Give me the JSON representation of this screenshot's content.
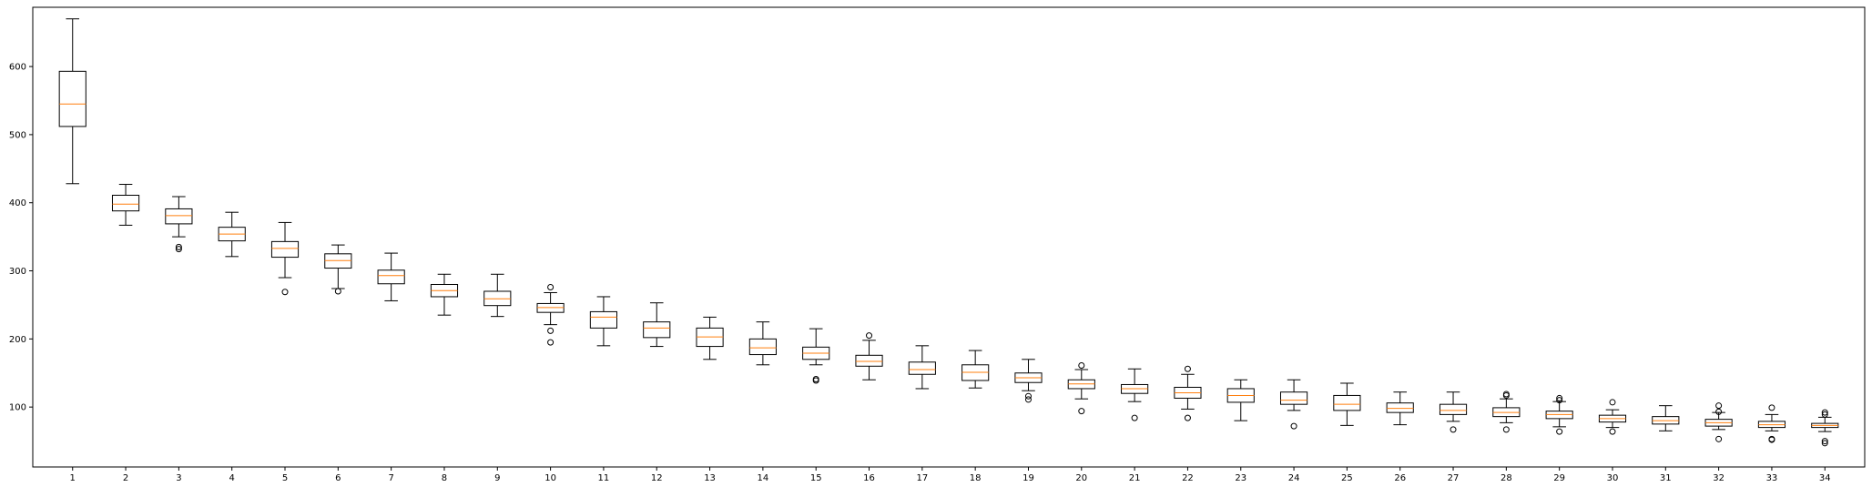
{
  "chart_data": {
    "type": "boxplot",
    "title": "",
    "xlabel": "",
    "ylabel": "",
    "ylim": [
      12,
      687
    ],
    "yticks": [
      100,
      200,
      300,
      400,
      500,
      600
    ],
    "categories": [
      "1",
      "2",
      "3",
      "4",
      "5",
      "6",
      "7",
      "8",
      "9",
      "10",
      "11",
      "12",
      "13",
      "14",
      "15",
      "16",
      "17",
      "18",
      "19",
      "20",
      "21",
      "22",
      "23",
      "24",
      "25",
      "26",
      "27",
      "28",
      "29",
      "30",
      "31",
      "32",
      "33",
      "34"
    ],
    "grid": false,
    "colors": {
      "box": "#000000",
      "median": "#ff7f0e",
      "flier": "#000000"
    },
    "boxes": [
      {
        "label": "1",
        "whislo": 428,
        "q1": 512,
        "med": 545,
        "q3": 593,
        "whishi": 670,
        "fliers": []
      },
      {
        "label": "2",
        "whislo": 367,
        "q1": 388,
        "med": 398,
        "q3": 411,
        "whishi": 427,
        "fliers": []
      },
      {
        "label": "3",
        "whislo": 350,
        "q1": 369,
        "med": 381,
        "q3": 391,
        "whishi": 409,
        "fliers": [
          332,
          335
        ]
      },
      {
        "label": "4",
        "whislo": 321,
        "q1": 344,
        "med": 354,
        "q3": 364,
        "whishi": 386,
        "fliers": []
      },
      {
        "label": "5",
        "whislo": 290,
        "q1": 320,
        "med": 333,
        "q3": 343,
        "whishi": 371,
        "fliers": [
          269
        ]
      },
      {
        "label": "6",
        "whislo": 274,
        "q1": 304,
        "med": 315,
        "q3": 325,
        "whishi": 338,
        "fliers": [
          270
        ]
      },
      {
        "label": "7",
        "whislo": 256,
        "q1": 281,
        "med": 293,
        "q3": 301,
        "whishi": 326,
        "fliers": []
      },
      {
        "label": "8",
        "whislo": 235,
        "q1": 262,
        "med": 271,
        "q3": 280,
        "whishi": 295,
        "fliers": []
      },
      {
        "label": "9",
        "whislo": 233,
        "q1": 249,
        "med": 259,
        "q3": 270,
        "whishi": 295,
        "fliers": []
      },
      {
        "label": "10",
        "whislo": 221,
        "q1": 239,
        "med": 246,
        "q3": 252,
        "whishi": 268,
        "fliers": [
          195,
          212,
          276
        ]
      },
      {
        "label": "11",
        "whislo": 190,
        "q1": 216,
        "med": 232,
        "q3": 240,
        "whishi": 262,
        "fliers": []
      },
      {
        "label": "12",
        "whislo": 189,
        "q1": 202,
        "med": 216,
        "q3": 225,
        "whishi": 253,
        "fliers": []
      },
      {
        "label": "13",
        "whislo": 170,
        "q1": 189,
        "med": 203,
        "q3": 216,
        "whishi": 232,
        "fliers": []
      },
      {
        "label": "14",
        "whislo": 162,
        "q1": 177,
        "med": 187,
        "q3": 200,
        "whishi": 225,
        "fliers": []
      },
      {
        "label": "15",
        "whislo": 162,
        "q1": 170,
        "med": 179,
        "q3": 188,
        "whishi": 215,
        "fliers": [
          139,
          141
        ]
      },
      {
        "label": "16",
        "whislo": 140,
        "q1": 160,
        "med": 167,
        "q3": 176,
        "whishi": 198,
        "fliers": [
          205
        ]
      },
      {
        "label": "17",
        "whislo": 127,
        "q1": 148,
        "med": 155,
        "q3": 166,
        "whishi": 190,
        "fliers": []
      },
      {
        "label": "18",
        "whislo": 128,
        "q1": 139,
        "med": 151,
        "q3": 162,
        "whishi": 183,
        "fliers": []
      },
      {
        "label": "19",
        "whislo": 124,
        "q1": 136,
        "med": 143,
        "q3": 150,
        "whishi": 170,
        "fliers": [
          111,
          116
        ]
      },
      {
        "label": "20",
        "whislo": 112,
        "q1": 127,
        "med": 134,
        "q3": 140,
        "whishi": 155,
        "fliers": [
          94,
          161
        ]
      },
      {
        "label": "21",
        "whislo": 108,
        "q1": 120,
        "med": 127,
        "q3": 133,
        "whishi": 156,
        "fliers": [
          84
        ]
      },
      {
        "label": "22",
        "whislo": 97,
        "q1": 113,
        "med": 121,
        "q3": 129,
        "whishi": 148,
        "fliers": [
          84,
          156
        ]
      },
      {
        "label": "23",
        "whislo": 80,
        "q1": 107,
        "med": 117,
        "q3": 127,
        "whishi": 140,
        "fliers": []
      },
      {
        "label": "24",
        "whislo": 95,
        "q1": 104,
        "med": 110,
        "q3": 122,
        "whishi": 140,
        "fliers": [
          72
        ]
      },
      {
        "label": "25",
        "whislo": 73,
        "q1": 95,
        "med": 104,
        "q3": 117,
        "whishi": 135,
        "fliers": []
      },
      {
        "label": "26",
        "whislo": 74,
        "q1": 92,
        "med": 98,
        "q3": 106,
        "whishi": 122,
        "fliers": []
      },
      {
        "label": "27",
        "whislo": 79,
        "q1": 89,
        "med": 95,
        "q3": 104,
        "whishi": 122,
        "fliers": [
          67
        ]
      },
      {
        "label": "28",
        "whislo": 77,
        "q1": 86,
        "med": 92,
        "q3": 99,
        "whishi": 112,
        "fliers": [
          67,
          117,
          119
        ]
      },
      {
        "label": "29",
        "whislo": 71,
        "q1": 83,
        "med": 89,
        "q3": 94,
        "whishi": 108,
        "fliers": [
          64,
          110,
          113
        ]
      },
      {
        "label": "30",
        "whislo": 70,
        "q1": 78,
        "med": 83,
        "q3": 88,
        "whishi": 96,
        "fliers": [
          64,
          107
        ]
      },
      {
        "label": "31",
        "whislo": 65,
        "q1": 75,
        "med": 80,
        "q3": 86,
        "whishi": 102,
        "fliers": []
      },
      {
        "label": "32",
        "whislo": 67,
        "q1": 72,
        "med": 77,
        "q3": 82,
        "whishi": 92,
        "fliers": [
          53,
          93,
          102
        ]
      },
      {
        "label": "33",
        "whislo": 65,
        "q1": 70,
        "med": 74,
        "q3": 79,
        "whishi": 89,
        "fliers": [
          52,
          53,
          99
        ]
      },
      {
        "label": "34",
        "whislo": 64,
        "q1": 70,
        "med": 73,
        "q3": 76,
        "whishi": 85,
        "fliers": [
          47,
          50,
          89,
          92
        ]
      }
    ]
  }
}
